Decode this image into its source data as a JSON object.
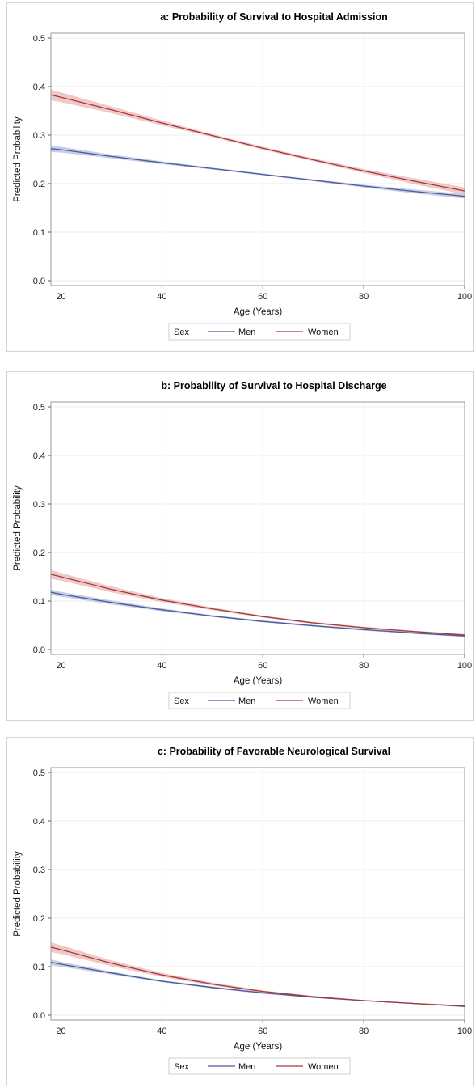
{
  "chart_data": [
    {
      "type": "line",
      "title": "a: Probability of Survival to Hospital Admission",
      "xlabel": "Age (Years)",
      "ylabel": "Predicted Probability",
      "xlim": [
        18,
        100
      ],
      "ylim": [
        -0.01,
        0.51
      ],
      "xticks": [
        "20",
        "40",
        "60",
        "80",
        "100"
      ],
      "yticks": [
        "0.0",
        "0.1",
        "0.2",
        "0.3",
        "0.4",
        "0.5"
      ],
      "grid": true,
      "legend_title": "Sex",
      "legend_position": "bottom",
      "x": [
        18,
        20,
        30,
        40,
        50,
        60,
        70,
        80,
        90,
        100
      ],
      "series": [
        {
          "name": "Men",
          "color": "#4a5a9a",
          "band_color": "#9aa6d6",
          "values": [
            0.272,
            0.27,
            0.256,
            0.243,
            0.231,
            0.219,
            0.207,
            0.195,
            0.184,
            0.174
          ],
          "band": [
            0.007,
            0.006,
            0.004,
            0.003,
            0.002,
            0.002,
            0.002,
            0.003,
            0.004,
            0.005
          ]
        },
        {
          "name": "Women",
          "color": "#a33a3a",
          "band_color": "#e39a9a",
          "values": [
            0.383,
            0.378,
            0.352,
            0.325,
            0.299,
            0.273,
            0.249,
            0.226,
            0.205,
            0.185
          ],
          "band": [
            0.011,
            0.01,
            0.007,
            0.005,
            0.003,
            0.003,
            0.003,
            0.004,
            0.006,
            0.007
          ]
        }
      ]
    },
    {
      "type": "line",
      "title": "b: Probability of Survival to Hospital Discharge",
      "xlabel": "Age (Years)",
      "ylabel": "Predicted Probability",
      "xlim": [
        18,
        100
      ],
      "ylim": [
        -0.01,
        0.51
      ],
      "xticks": [
        "20",
        "40",
        "60",
        "80",
        "100"
      ],
      "yticks": [
        "0.0",
        "0.1",
        "0.2",
        "0.3",
        "0.4",
        "0.5"
      ],
      "grid": true,
      "legend_title": "Sex",
      "legend_position": "bottom",
      "x": [
        18,
        20,
        30,
        40,
        50,
        60,
        70,
        80,
        90,
        100
      ],
      "series": [
        {
          "name": "Men",
          "color": "#4a5a9a",
          "band_color": "#9aa6d6",
          "values": [
            0.118,
            0.114,
            0.097,
            0.082,
            0.069,
            0.058,
            0.049,
            0.041,
            0.034,
            0.028
          ],
          "band": [
            0.006,
            0.005,
            0.004,
            0.003,
            0.002,
            0.002,
            0.002,
            0.002,
            0.002,
            0.002
          ]
        },
        {
          "name": "Women",
          "color": "#a33a3a",
          "band_color": "#e39a9a",
          "values": [
            0.155,
            0.15,
            0.124,
            0.102,
            0.084,
            0.068,
            0.055,
            0.045,
            0.037,
            0.03
          ],
          "band": [
            0.009,
            0.008,
            0.006,
            0.004,
            0.003,
            0.002,
            0.002,
            0.002,
            0.002,
            0.002
          ]
        }
      ]
    },
    {
      "type": "line",
      "title": "c: Probability of Favorable Neurological Survival",
      "xlabel": "Age (Years)",
      "ylabel": "Predicted Probability",
      "xlim": [
        18,
        100
      ],
      "ylim": [
        -0.01,
        0.51
      ],
      "xticks": [
        "20",
        "40",
        "60",
        "80",
        "100"
      ],
      "yticks": [
        "0.0",
        "0.1",
        "0.2",
        "0.3",
        "0.4",
        "0.5"
      ],
      "grid": true,
      "legend_title": "Sex",
      "legend_position": "bottom",
      "x": [
        18,
        20,
        30,
        40,
        50,
        60,
        70,
        80,
        90,
        100
      ],
      "series": [
        {
          "name": "Men",
          "color": "#4a5a9a",
          "band_color": "#9aa6d6",
          "values": [
            0.109,
            0.105,
            0.087,
            0.07,
            0.057,
            0.046,
            0.037,
            0.03,
            0.024,
            0.018
          ],
          "band": [
            0.006,
            0.005,
            0.003,
            0.002,
            0.002,
            0.002,
            0.001,
            0.001,
            0.001,
            0.001
          ]
        },
        {
          "name": "Women",
          "color": "#a33a3a",
          "band_color": "#e39a9a",
          "values": [
            0.14,
            0.135,
            0.107,
            0.083,
            0.064,
            0.049,
            0.038,
            0.03,
            0.024,
            0.019
          ],
          "band": [
            0.01,
            0.009,
            0.006,
            0.004,
            0.003,
            0.002,
            0.002,
            0.001,
            0.001,
            0.001
          ]
        }
      ]
    }
  ]
}
